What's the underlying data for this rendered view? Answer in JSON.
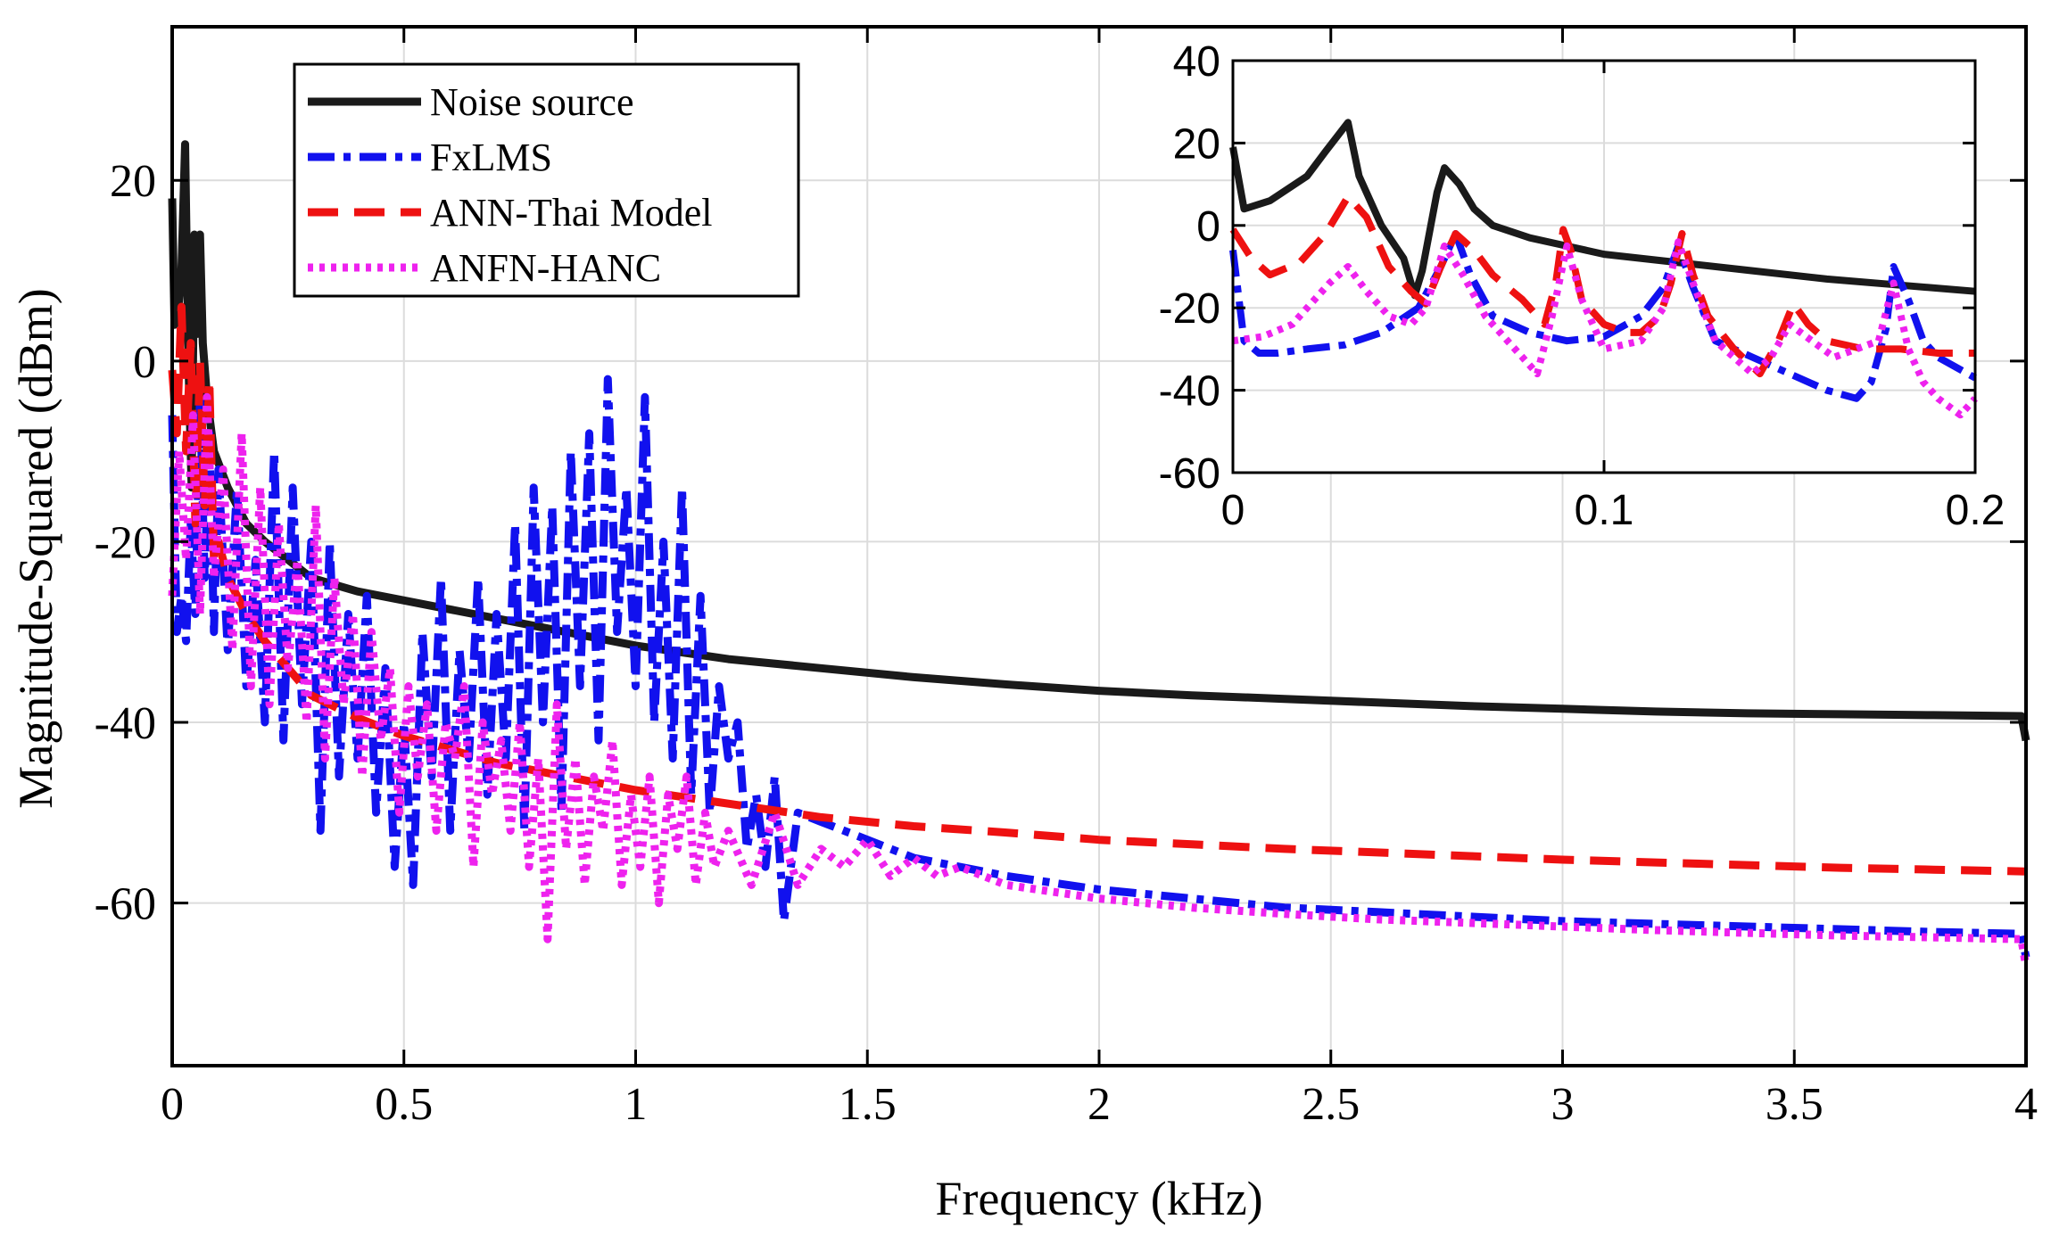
{
  "chart_data": [
    {
      "type": "line",
      "title": "",
      "xlabel": "Frequency (kHz)",
      "ylabel": "Magnitude-Squared (dBm)",
      "xlim": [
        0,
        4
      ],
      "ylim": [
        -78,
        37
      ],
      "xticks": [
        0,
        0.5,
        1,
        1.5,
        2,
        2.5,
        3,
        3.5,
        4
      ],
      "xtick_labels": [
        "0",
        "0.5",
        "1",
        "1.5",
        "2",
        "2.5",
        "3",
        "3.5",
        "4"
      ],
      "yticks": [
        -60,
        -40,
        -20,
        0,
        20
      ],
      "ytick_labels": [
        "-60",
        "-40",
        "-20",
        "0",
        "20"
      ],
      "grid": true,
      "legend_position": "top-left",
      "series": [
        {
          "name": "Noise source",
          "color": "#1a1a1a",
          "style": "solid",
          "x": [
            0,
            0.005,
            0.012,
            0.02,
            0.028,
            0.032,
            0.036,
            0.042,
            0.048,
            0.055,
            0.06,
            0.066,
            0.075,
            0.09,
            0.12,
            0.16,
            0.2,
            0.25,
            0.3,
            0.4,
            0.5,
            0.6,
            0.7,
            0.8,
            0.9,
            1.0,
            1.2,
            1.4,
            1.6,
            1.8,
            2.0,
            2.2,
            2.4,
            2.6,
            2.8,
            3.0,
            3.2,
            3.4,
            3.6,
            3.8,
            3.99,
            4.0
          ],
          "y": [
            18,
            4,
            5,
            10,
            24,
            10,
            -2,
            -14,
            14,
            3,
            14,
            2,
            -4,
            -10,
            -14,
            -18,
            -20,
            -22,
            -24,
            -25.5,
            -26.5,
            -27.5,
            -28.5,
            -29.5,
            -30.5,
            -31.5,
            -33,
            -34,
            -35,
            -35.8,
            -36.5,
            -37,
            -37.4,
            -37.8,
            -38.2,
            -38.5,
            -38.8,
            -39,
            -39.1,
            -39.2,
            -39.3,
            -42
          ]
        },
        {
          "name": "FxLMS",
          "color": "#1111ee",
          "style": "dashdot",
          "x": [
            0,
            0.01,
            0.02,
            0.03,
            0.04,
            0.05,
            0.06,
            0.07,
            0.08,
            0.09,
            0.1,
            0.12,
            0.14,
            0.16,
            0.18,
            0.2,
            0.22,
            0.24,
            0.26,
            0.28,
            0.3,
            0.32,
            0.34,
            0.36,
            0.38,
            0.4,
            0.42,
            0.44,
            0.46,
            0.48,
            0.5,
            0.52,
            0.54,
            0.56,
            0.58,
            0.6,
            0.62,
            0.64,
            0.66,
            0.68,
            0.7,
            0.72,
            0.74,
            0.76,
            0.78,
            0.8,
            0.82,
            0.84,
            0.86,
            0.88,
            0.9,
            0.92,
            0.94,
            0.96,
            0.98,
            1.0,
            1.02,
            1.04,
            1.06,
            1.08,
            1.1,
            1.12,
            1.14,
            1.16,
            1.18,
            1.2,
            1.22,
            1.24,
            1.26,
            1.28,
            1.3,
            1.32,
            1.35,
            1.4,
            1.5,
            1.6,
            1.8,
            2.0,
            2.2,
            2.4,
            2.6,
            2.8,
            3.0,
            3.2,
            3.4,
            3.6,
            3.8,
            3.99,
            4.0
          ],
          "y": [
            -6,
            -30,
            -26,
            -31,
            -18,
            -28,
            -4,
            -24,
            -8,
            -30,
            -12,
            -32,
            -14,
            -36,
            -22,
            -40,
            -10,
            -42,
            -14,
            -38,
            -20,
            -52,
            -20,
            -46,
            -28,
            -44,
            -26,
            -50,
            -34,
            -56,
            -40,
            -58,
            -30,
            -46,
            -24,
            -52,
            -32,
            -44,
            -24,
            -48,
            -28,
            -44,
            -18,
            -52,
            -14,
            -40,
            -16,
            -50,
            -10,
            -36,
            -8,
            -42,
            -2,
            -30,
            -14,
            -36,
            -4,
            -40,
            -20,
            -44,
            -14,
            -48,
            -26,
            -50,
            -36,
            -44,
            -40,
            -54,
            -48,
            -56,
            -46,
            -62,
            -50,
            -51,
            -53,
            -55,
            -57,
            -58.5,
            -59.5,
            -60.5,
            -61,
            -61.5,
            -62,
            -62.3,
            -62.6,
            -62.9,
            -63.2,
            -63.4,
            -66
          ]
        },
        {
          "name": "ANN-Thai Model",
          "color": "#ee1111",
          "style": "dashed",
          "x": [
            0,
            0.01,
            0.02,
            0.03,
            0.04,
            0.05,
            0.06,
            0.07,
            0.08,
            0.09,
            0.1,
            0.12,
            0.14,
            0.16,
            0.2,
            0.25,
            0.3,
            0.4,
            0.5,
            0.6,
            0.7,
            0.8,
            0.9,
            1.0,
            1.2,
            1.4,
            1.6,
            1.8,
            2.0,
            2.2,
            2.4,
            2.6,
            2.8,
            3.0,
            3.2,
            3.4,
            3.6,
            3.8,
            4.0
          ],
          "y": [
            -1,
            -8,
            6,
            -10,
            2,
            -18,
            0,
            -16,
            -2,
            -22,
            -20,
            -24,
            -26,
            -28,
            -31,
            -34,
            -37,
            -39.5,
            -41.5,
            -43,
            -44.5,
            -45.5,
            -46.5,
            -47.5,
            -49,
            -50.5,
            -51.5,
            -52.2,
            -53,
            -53.5,
            -54,
            -54.4,
            -54.8,
            -55.2,
            -55.5,
            -55.8,
            -56.1,
            -56.3,
            -56.5
          ]
        },
        {
          "name": "ANFN-HANC",
          "color": "#ee22ee",
          "style": "dotted",
          "x": [
            0,
            0.015,
            0.03,
            0.045,
            0.06,
            0.075,
            0.09,
            0.11,
            0.13,
            0.15,
            0.17,
            0.19,
            0.21,
            0.23,
            0.25,
            0.27,
            0.29,
            0.31,
            0.33,
            0.35,
            0.37,
            0.39,
            0.41,
            0.43,
            0.45,
            0.47,
            0.49,
            0.51,
            0.53,
            0.55,
            0.57,
            0.59,
            0.61,
            0.63,
            0.65,
            0.67,
            0.69,
            0.71,
            0.73,
            0.75,
            0.77,
            0.79,
            0.81,
            0.83,
            0.85,
            0.87,
            0.89,
            0.91,
            0.93,
            0.95,
            0.97,
            0.99,
            1.01,
            1.03,
            1.05,
            1.07,
            1.09,
            1.11,
            1.13,
            1.15,
            1.17,
            1.2,
            1.25,
            1.3,
            1.35,
            1.4,
            1.45,
            1.5,
            1.55,
            1.6,
            1.65,
            1.7,
            1.8,
            2.0,
            2.2,
            2.4,
            2.6,
            2.8,
            3.0,
            3.2,
            3.4,
            3.6,
            3.8,
            3.99,
            4.0
          ],
          "y": [
            -26,
            -10,
            -22,
            -6,
            -28,
            -4,
            -24,
            -12,
            -32,
            -8,
            -36,
            -14,
            -38,
            -18,
            -34,
            -22,
            -40,
            -16,
            -44,
            -24,
            -38,
            -28,
            -46,
            -30,
            -42,
            -34,
            -50,
            -36,
            -46,
            -38,
            -52,
            -40,
            -44,
            -36,
            -56,
            -40,
            -48,
            -42,
            -52,
            -40,
            -56,
            -44,
            -64,
            -38,
            -54,
            -44,
            -58,
            -46,
            -52,
            -42,
            -58,
            -48,
            -56,
            -46,
            -60,
            -48,
            -54,
            -46,
            -58,
            -50,
            -56,
            -52,
            -58,
            -50,
            -58,
            -54,
            -56,
            -53,
            -57,
            -55,
            -57,
            -56,
            -58,
            -59.5,
            -60.5,
            -61.2,
            -61.8,
            -62.2,
            -62.6,
            -63,
            -63.3,
            -63.6,
            -63.8,
            -64,
            -67
          ]
        }
      ]
    },
    {
      "type": "line",
      "title": "",
      "xlabel": "",
      "ylabel": "",
      "xlim": [
        0,
        0.2
      ],
      "ylim": [
        -60,
        40
      ],
      "xticks": [
        0,
        0.1,
        0.2
      ],
      "xtick_labels": [
        "0",
        "0.1",
        "0.2"
      ],
      "yticks": [
        -60,
        -40,
        -20,
        0,
        20,
        40
      ],
      "ytick_labels": [
        "-60",
        "-40",
        "-20",
        "0",
        "20",
        "40"
      ],
      "grid": true,
      "series": [
        {
          "name": "Noise source",
          "color": "#1a1a1a",
          "style": "solid",
          "x": [
            0,
            0.003,
            0.01,
            0.02,
            0.025,
            0.031,
            0.034,
            0.04,
            0.046,
            0.049,
            0.051,
            0.055,
            0.057,
            0.061,
            0.065,
            0.07,
            0.08,
            0.09,
            0.1,
            0.12,
            0.14,
            0.16,
            0.18,
            0.2
          ],
          "y": [
            19,
            4,
            6,
            12,
            18,
            25,
            12,
            0,
            -8,
            -17,
            -11,
            8,
            14,
            10,
            4,
            0,
            -3,
            -5,
            -7,
            -9,
            -11,
            -13,
            -14.5,
            -16
          ]
        },
        {
          "name": "FxLMS",
          "color": "#1111ee",
          "style": "dashdot",
          "x": [
            0,
            0.003,
            0.007,
            0.012,
            0.02,
            0.03,
            0.04,
            0.05,
            0.056,
            0.06,
            0.064,
            0.07,
            0.08,
            0.09,
            0.1,
            0.11,
            0.116,
            0.12,
            0.124,
            0.13,
            0.14,
            0.15,
            0.16,
            0.168,
            0.172,
            0.176,
            0.178,
            0.182,
            0.186,
            0.19,
            0.2
          ],
          "y": [
            -6,
            -28,
            -31,
            -31,
            -30,
            -29,
            -26,
            -20,
            -10,
            -2,
            -12,
            -22,
            -26,
            -28,
            -27,
            -22,
            -15,
            -5,
            -15,
            -28,
            -32,
            -36,
            -40,
            -42,
            -38,
            -25,
            -10,
            -18,
            -28,
            -32,
            -37
          ]
        },
        {
          "name": "ANN-Thai Model",
          "color": "#ee1111",
          "style": "dashed",
          "x": [
            0,
            0.005,
            0.01,
            0.018,
            0.025,
            0.031,
            0.036,
            0.042,
            0.048,
            0.052,
            0.056,
            0.06,
            0.065,
            0.07,
            0.078,
            0.084,
            0.087,
            0.089,
            0.091,
            0.094,
            0.1,
            0.106,
            0.11,
            0.115,
            0.118,
            0.121,
            0.124,
            0.128,
            0.135,
            0.142,
            0.147,
            0.151,
            0.155,
            0.16,
            0.17,
            0.18,
            0.19,
            0.2
          ],
          "y": [
            -1,
            -8,
            -12,
            -9,
            -2,
            7,
            2,
            -10,
            -16,
            -19,
            -10,
            -2,
            -6,
            -12,
            -18,
            -24,
            -14,
            -1,
            -6,
            -18,
            -24,
            -26,
            -26,
            -22,
            -14,
            -2,
            -12,
            -22,
            -30,
            -36,
            -28,
            -19,
            -24,
            -28,
            -30,
            -30,
            -31,
            -31
          ]
        },
        {
          "name": "ANFN-HANC",
          "color": "#ee22ee",
          "style": "dotted",
          "x": [
            0,
            0.008,
            0.016,
            0.022,
            0.026,
            0.031,
            0.036,
            0.042,
            0.048,
            0.052,
            0.057,
            0.062,
            0.068,
            0.074,
            0.078,
            0.082,
            0.086,
            0.09,
            0.094,
            0.1,
            0.11,
            0.116,
            0.12,
            0.124,
            0.13,
            0.14,
            0.145,
            0.15,
            0.156,
            0.162,
            0.168,
            0.174,
            0.178,
            0.182,
            0.186,
            0.19,
            0.196,
            0.2
          ],
          "y": [
            -28,
            -27,
            -24,
            -18,
            -14,
            -10,
            -16,
            -22,
            -24,
            -20,
            -5,
            -12,
            -22,
            -28,
            -32,
            -36,
            -22,
            -5,
            -18,
            -30,
            -28,
            -20,
            -4,
            -14,
            -28,
            -36,
            -32,
            -24,
            -28,
            -32,
            -30,
            -28,
            -14,
            -30,
            -38,
            -42,
            -46,
            -42
          ]
        }
      ]
    }
  ]
}
